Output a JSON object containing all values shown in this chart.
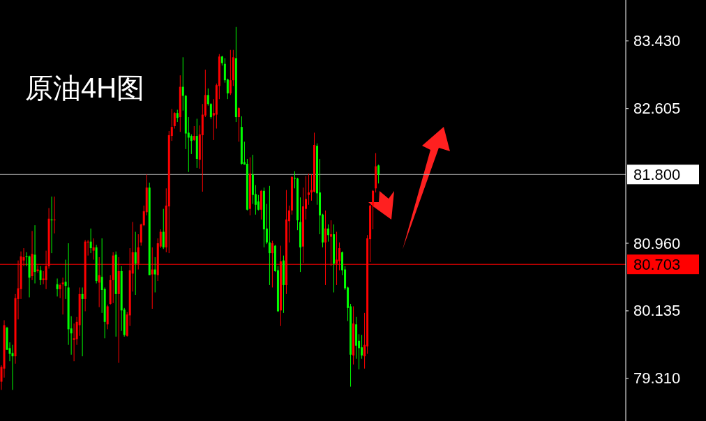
{
  "chart_data": {
    "type": "candlestick",
    "title": "原油4H图",
    "categories": [
      null,
      null,
      null,
      null,
      null,
      null,
      null,
      null,
      null,
      null,
      null,
      null,
      null,
      null,
      null,
      null,
      null,
      null,
      null,
      null,
      null,
      null,
      null,
      null,
      null,
      null,
      null,
      null,
      null,
      null,
      null,
      null,
      null,
      null,
      null,
      null,
      null,
      null,
      null,
      null,
      null,
      null,
      null,
      null,
      null,
      null,
      null,
      null,
      null,
      null,
      null,
      null,
      null,
      null,
      null,
      null,
      null,
      null,
      null,
      null,
      null,
      null,
      null,
      null,
      null,
      null,
      null,
      null,
      null,
      null,
      null,
      null,
      null,
      null,
      null,
      null,
      null,
      null,
      null,
      null,
      null,
      null,
      null,
      null,
      null,
      null,
      null,
      null,
      null,
      null,
      null,
      null,
      null,
      null,
      null,
      null,
      null,
      null,
      null,
      null,
      null,
      null,
      null,
      null,
      null,
      null,
      null,
      null,
      null,
      null,
      null,
      null,
      null,
      null,
      null,
      null,
      null,
      null,
      null,
      null,
      null,
      null,
      null,
      null,
      null,
      null,
      null,
      null,
      null,
      null,
      null,
      null,
      null,
      null,
      null,
      null,
      null,
      null,
      null,
      null,
      null,
      null,
      null,
      null,
      null,
      null,
      null,
      null,
      null,
      null,
      null,
      null,
      null,
      null,
      null,
      null,
      null,
      null,
      null,
      null,
      null,
      null,
      null,
      null,
      null,
      null,
      null,
      null,
      null,
      null,
      null,
      null,
      null,
      null,
      null,
      null,
      null,
      null,
      null,
      null,
      null,
      null,
      null,
      null,
      null,
      null,
      null,
      null,
      null,
      null,
      null,
      null,
      null,
      null,
      null,
      null,
      null,
      null,
      null,
      null,
      null,
      null,
      null,
      null,
      null,
      null,
      null,
      null,
      null,
      null,
      null,
      null,
      null,
      null,
      null,
      null,
      null,
      null,
      null,
      null,
      null,
      null,
      null,
      null
    ],
    "ohlc": [
      [
        79.27,
        79.47,
        79.17,
        79.45
      ],
      [
        79.43,
        80.02,
        79.32,
        79.96
      ],
      [
        79.93,
        79.94,
        79.66,
        79.66
      ],
      [
        79.68,
        79.75,
        79.52,
        79.61
      ],
      [
        79.62,
        79.72,
        79.17,
        79.58
      ],
      [
        79.58,
        80.34,
        79.49,
        80.29
      ],
      [
        80.28,
        80.75,
        80.03,
        80.41
      ],
      [
        80.4,
        80.86,
        80.28,
        80.8
      ],
      [
        80.75,
        80.9,
        80.68,
        80.79
      ],
      [
        80.8,
        80.85,
        80.68,
        80.79
      ],
      [
        80.8,
        80.81,
        80.3,
        80.54
      ],
      [
        80.56,
        81.11,
        80.51,
        80.83
      ],
      [
        80.82,
        81.18,
        80.47,
        80.61
      ],
      [
        80.62,
        80.69,
        80.6,
        80.64
      ],
      [
        80.63,
        80.68,
        80.45,
        80.51
      ],
      [
        80.51,
        80.62,
        80.46,
        80.53
      ],
      [
        80.51,
        80.87,
        80.4,
        80.68
      ],
      [
        80.68,
        81.39,
        80.65,
        81.26
      ],
      [
        81.25,
        81.53,
        80.84,
        81.24
      ],
      [
        81.24,
        81.53,
        81.08,
        81.25
      ],
      [
        80.46,
        80.53,
        80.31,
        80.4
      ],
      [
        80.4,
        80.47,
        80.29,
        80.45
      ],
      [
        80.46,
        80.54,
        80.09,
        80.48
      ],
      [
        80.49,
        80.76,
        80.28,
        80.44
      ],
      [
        80.42,
        80.96,
        79.72,
        79.91
      ],
      [
        79.92,
        80.07,
        79.6,
        79.86
      ],
      [
        79.78,
        79.98,
        79.52,
        79.8
      ],
      [
        79.79,
        80.06,
        79.72,
        80.0
      ],
      [
        79.96,
        80.42,
        79.83,
        80.34
      ],
      [
        80.34,
        80.42,
        79.58,
        80.28
      ],
      [
        80.28,
        81.0,
        80.13,
        80.98
      ],
      [
        80.97,
        81.0,
        80.81,
        80.98
      ],
      [
        80.98,
        81.14,
        80.84,
        80.9
      ],
      [
        80.87,
        81.02,
        80.76,
        80.91
      ],
      [
        80.91,
        80.94,
        80.47,
        80.5
      ],
      [
        80.48,
        80.79,
        80.18,
        80.57
      ],
      [
        80.55,
        81.02,
        80.11,
        80.39
      ],
      [
        80.4,
        80.42,
        79.8,
        80.0
      ],
      [
        79.97,
        80.21,
        79.91,
        80.19
      ],
      [
        80.22,
        80.57,
        80.21,
        80.51
      ],
      [
        80.51,
        80.85,
        80.23,
        80.81
      ],
      [
        80.82,
        80.86,
        79.82,
        80.34
      ],
      [
        80.34,
        80.79,
        79.5,
        80.62
      ],
      [
        80.62,
        80.68,
        79.89,
        80.14
      ],
      [
        80.15,
        80.17,
        79.82,
        79.84
      ],
      [
        79.83,
        80.12,
        79.82,
        80.09
      ],
      [
        80.08,
        80.9,
        79.95,
        80.63
      ],
      [
        80.59,
        81.22,
        80.37,
        80.85
      ],
      [
        80.85,
        81.1,
        80.33,
        80.71
      ],
      [
        80.71,
        81.07,
        80.64,
        80.91
      ],
      [
        80.97,
        81.2,
        80.93,
        81.19
      ],
      [
        81.18,
        81.42,
        81.17,
        81.35
      ],
      [
        81.34,
        81.8,
        81.3,
        81.64
      ],
      [
        81.64,
        81.7,
        80.57,
        80.57
      ],
      [
        80.58,
        80.91,
        80.16,
        80.64
      ],
      [
        80.64,
        80.79,
        80.36,
        80.58
      ],
      [
        80.57,
        81.02,
        80.5,
        80.96
      ],
      [
        80.92,
        81.13,
        80.9,
        81.1
      ],
      [
        81.1,
        81.38,
        80.89,
        80.91
      ],
      [
        80.91,
        81.63,
        80.85,
        81.42
      ],
      [
        81.41,
        82.33,
        80.84,
        82.28
      ],
      [
        82.27,
        82.6,
        82.21,
        82.38
      ],
      [
        82.39,
        82.56,
        82.36,
        82.55
      ],
      [
        82.55,
        82.59,
        82.44,
        82.49
      ],
      [
        82.5,
        83.01,
        82.32,
        82.87
      ],
      [
        82.87,
        83.23,
        82.58,
        82.76
      ],
      [
        82.76,
        82.77,
        82.11,
        82.3
      ],
      [
        82.31,
        82.5,
        81.83,
        82.25
      ],
      [
        82.27,
        82.29,
        82.05,
        82.21
      ],
      [
        82.22,
        82.39,
        82.21,
        82.27
      ],
      [
        82.27,
        82.48,
        81.88,
        81.99
      ],
      [
        81.98,
        82.4,
        81.87,
        82.29
      ],
      [
        82.28,
        82.66,
        81.59,
        82.53
      ],
      [
        82.52,
        83.08,
        82.5,
        82.77
      ],
      [
        82.77,
        82.85,
        82.64,
        82.66
      ],
      [
        82.66,
        82.67,
        82.48,
        82.5
      ],
      [
        82.52,
        82.72,
        82.22,
        82.55
      ],
      [
        82.53,
        82.91,
        82.36,
        82.89
      ],
      [
        82.88,
        83.27,
        82.72,
        83.24
      ],
      [
        83.24,
        83.25,
        83.13,
        83.16
      ],
      [
        83.15,
        83.22,
        82.92,
        82.95
      ],
      [
        82.96,
        82.97,
        82.72,
        82.79
      ],
      [
        82.79,
        83.32,
        82.77,
        82.95
      ],
      [
        82.95,
        83.32,
        82.88,
        83.23
      ],
      [
        83.22,
        83.6,
        82.44,
        82.5
      ],
      [
        82.5,
        82.62,
        82.2,
        82.61
      ],
      [
        82.38,
        82.51,
        81.92,
        81.93
      ],
      [
        81.95,
        82.2,
        81.92,
        81.92
      ],
      [
        81.93,
        81.99,
        81.36,
        81.37
      ],
      [
        81.38,
        82.01,
        81.3,
        81.81
      ],
      [
        81.8,
        82.04,
        81.44,
        81.55
      ],
      [
        81.56,
        81.67,
        81.31,
        81.43
      ],
      [
        81.47,
        81.55,
        81.36,
        81.37
      ],
      [
        81.37,
        81.61,
        81.25,
        81.6
      ],
      [
        81.6,
        81.64,
        80.91,
        81.13
      ],
      [
        81.14,
        81.44,
        80.95,
        80.97
      ],
      [
        80.97,
        81.66,
        80.45,
        80.84
      ],
      [
        80.84,
        80.99,
        80.42,
        80.96
      ],
      [
        80.93,
        80.94,
        80.61,
        80.62
      ],
      [
        80.63,
        80.68,
        80.12,
        80.13
      ],
      [
        80.14,
        80.93,
        79.95,
        80.74
      ],
      [
        80.75,
        80.81,
        80.11,
        80.45
      ],
      [
        80.45,
        81.61,
        80.34,
        81.25
      ],
      [
        81.23,
        81.42,
        80.97,
        81.36
      ],
      [
        81.36,
        81.78,
        81.31,
        81.77
      ],
      [
        81.76,
        81.84,
        81.63,
        81.75
      ],
      [
        81.75,
        81.76,
        81.12,
        81.24
      ],
      [
        81.22,
        81.52,
        80.61,
        80.91
      ],
      [
        80.92,
        81.64,
        80.72,
        81.41
      ],
      [
        81.38,
        81.78,
        81.25,
        81.5
      ],
      [
        81.55,
        81.81,
        81.43,
        81.58
      ],
      [
        81.58,
        81.8,
        81.48,
        81.61
      ],
      [
        81.59,
        82.31,
        81.58,
        82.16
      ],
      [
        82.15,
        82.18,
        81.43,
        81.57
      ],
      [
        81.58,
        81.99,
        81.07,
        81.3
      ],
      [
        81.31,
        81.32,
        80.91,
        80.97
      ],
      [
        80.97,
        81.36,
        80.45,
        81.14
      ],
      [
        81.14,
        81.19,
        80.98,
        81.06
      ],
      [
        81.04,
        81.24,
        80.68,
        81.07
      ],
      [
        81.07,
        81.19,
        80.36,
        80.71
      ],
      [
        80.71,
        81.1,
        80.45,
        80.76
      ],
      [
        80.74,
        80.97,
        80.63,
        80.9
      ],
      [
        80.85,
        80.86,
        80.57,
        80.63
      ],
      [
        80.64,
        80.68,
        80.39,
        80.41
      ],
      [
        80.42,
        80.43,
        80.01,
        80.17
      ],
      [
        80.19,
        80.22,
        79.21,
        79.6
      ],
      [
        79.59,
        80.19,
        79.48,
        79.98
      ],
      [
        79.97,
        80.06,
        79.55,
        79.71
      ],
      [
        79.77,
        79.85,
        79.42,
        79.68
      ],
      [
        79.69,
        79.84,
        79.55,
        79.59
      ],
      [
        79.58,
        80.11,
        79.43,
        79.72
      ],
      [
        79.7,
        81.06,
        79.61,
        81.02
      ],
      [
        81.01,
        81.43,
        80.73,
        81.42
      ],
      [
        81.42,
        81.61,
        81.13,
        81.6
      ],
      [
        81.63,
        82.06,
        81.58,
        81.9
      ],
      [
        81.91,
        81.92,
        81.69,
        81.8
      ],
      null,
      null,
      null,
      null,
      null,
      null,
      null,
      null,
      null,
      null,
      null,
      null,
      null,
      null,
      null,
      null,
      null,
      null,
      null,
      null,
      null,
      null,
      null,
      null,
      null,
      null,
      null,
      null,
      null,
      null,
      null,
      null,
      null,
      null,
      null,
      null,
      null,
      null,
      null,
      null,
      null,
      null,
      null,
      null,
      null,
      null,
      null,
      null,
      null,
      null,
      null,
      null,
      null,
      null,
      null,
      null,
      null,
      null,
      null,
      null,
      null,
      null,
      null,
      null,
      null,
      null,
      null,
      null,
      null,
      null,
      null,
      null,
      null,
      null,
      null,
      null,
      null,
      null,
      null,
      null,
      null,
      null,
      null,
      null,
      null,
      null,
      null,
      null
    ],
    "colors": [
      "#ff0000",
      "#ff0000",
      "#00ff00",
      "#00ff00",
      "#00ff00",
      "#ff0000",
      "#ff0000",
      "#ff0000",
      "#ff0000",
      "#00ff00",
      "#00ff00",
      "#ff0000",
      "#00ff00",
      "#ff0000",
      "#00ff00",
      "#ff0000",
      "#ff0000",
      "#ff0000",
      "#00ff00",
      "#ff0000",
      "#00ff00",
      "#ff0000",
      "#ff0000",
      "#00ff00",
      "#00ff00",
      "#00ff00",
      "#ff0000",
      "#ff0000",
      "#ff0000",
      "#00ff00",
      "#ff0000",
      "#ff0000",
      "#00ff00",
      "#ff0000",
      "#00ff00",
      "#ff0000",
      "#00ff00",
      "#00ff00",
      "#ff0000",
      "#ff0000",
      "#ff0000",
      "#00ff00",
      "#ff0000",
      "#00ff00",
      "#00ff00",
      "#ff0000",
      "#ff0000",
      "#ff0000",
      "#00ff00",
      "#ff0000",
      "#ff0000",
      "#ff0000",
      "#ff0000",
      "#00ff00",
      "#ff0000",
      "#00ff00",
      "#ff0000",
      "#ff0000",
      "#00ff00",
      "#ff0000",
      "#ff0000",
      "#ff0000",
      "#ff0000",
      "#00ff00",
      "#ff0000",
      "#00ff00",
      "#00ff00",
      "#00ff00",
      "#00ff00",
      "#ff0000",
      "#00ff00",
      "#ff0000",
      "#ff0000",
      "#ff0000",
      "#00ff00",
      "#00ff00",
      "#ff0000",
      "#ff0000",
      "#ff0000",
      "#00ff00",
      "#00ff00",
      "#00ff00",
      "#ff0000",
      "#ff0000",
      "#00ff00",
      "#ff0000",
      "#00ff00",
      "#00ff00",
      "#00ff00",
      "#ff0000",
      "#00ff00",
      "#00ff00",
      "#00ff00",
      "#ff0000",
      "#00ff00",
      "#00ff00",
      "#00ff00",
      "#ff0000",
      "#00ff00",
      "#00ff00",
      "#ff0000",
      "#00ff00",
      "#ff0000",
      "#ff0000",
      "#ff0000",
      "#00ff00",
      "#00ff00",
      "#00ff00",
      "#ff0000",
      "#ff0000",
      "#ff0000",
      "#ff0000",
      "#ff0000",
      "#00ff00",
      "#00ff00",
      "#00ff00",
      "#ff0000",
      "#00ff00",
      "#ff0000",
      "#00ff00",
      "#ff0000",
      "#ff0000",
      "#00ff00",
      "#00ff00",
      "#00ff00",
      "#00ff00",
      "#ff0000",
      "#00ff00",
      "#00ff00",
      "#00ff00",
      "#ff0000",
      "#ff0000",
      "#ff0000",
      "#ff0000",
      "#ff0000",
      "#00ff00",
      null,
      null,
      null,
      null,
      null,
      null,
      null,
      null,
      null,
      null,
      null,
      null,
      null,
      null,
      null,
      null,
      null,
      null,
      null,
      null,
      null,
      null,
      null,
      null,
      null,
      null,
      null,
      null,
      null,
      null,
      null,
      null,
      null,
      null,
      null,
      null,
      null,
      null,
      null,
      null,
      null,
      null,
      null,
      null,
      null,
      null,
      null,
      null,
      null,
      null,
      null,
      null,
      null,
      null,
      null,
      null,
      null,
      null,
      null,
      null,
      null,
      null,
      null,
      null,
      null,
      null,
      null,
      null,
      null,
      null,
      null,
      null,
      null,
      null,
      null,
      null,
      null,
      null,
      null,
      null,
      null,
      null,
      null,
      null,
      null,
      null,
      null,
      null
    ],
    "ylim": [
      78.79,
      83.93
    ],
    "yticks": [
      {
        "value": 83.43,
        "label": "83.430"
      },
      {
        "value": 82.605,
        "label": "82.605"
      },
      {
        "value": 80.96,
        "label": "80.960"
      },
      {
        "value": 80.135,
        "label": "80.135"
      },
      {
        "value": 79.31,
        "label": "79.310"
      }
    ],
    "ref_lines": [
      {
        "axis": "y",
        "value": 81.8,
        "label": "81.800",
        "color": "#b4b4b4"
      },
      {
        "axis": "y",
        "value": 80.703,
        "label": "80.703",
        "color": "#ff0000"
      }
    ],
    "tick_labels": "y"
  }
}
